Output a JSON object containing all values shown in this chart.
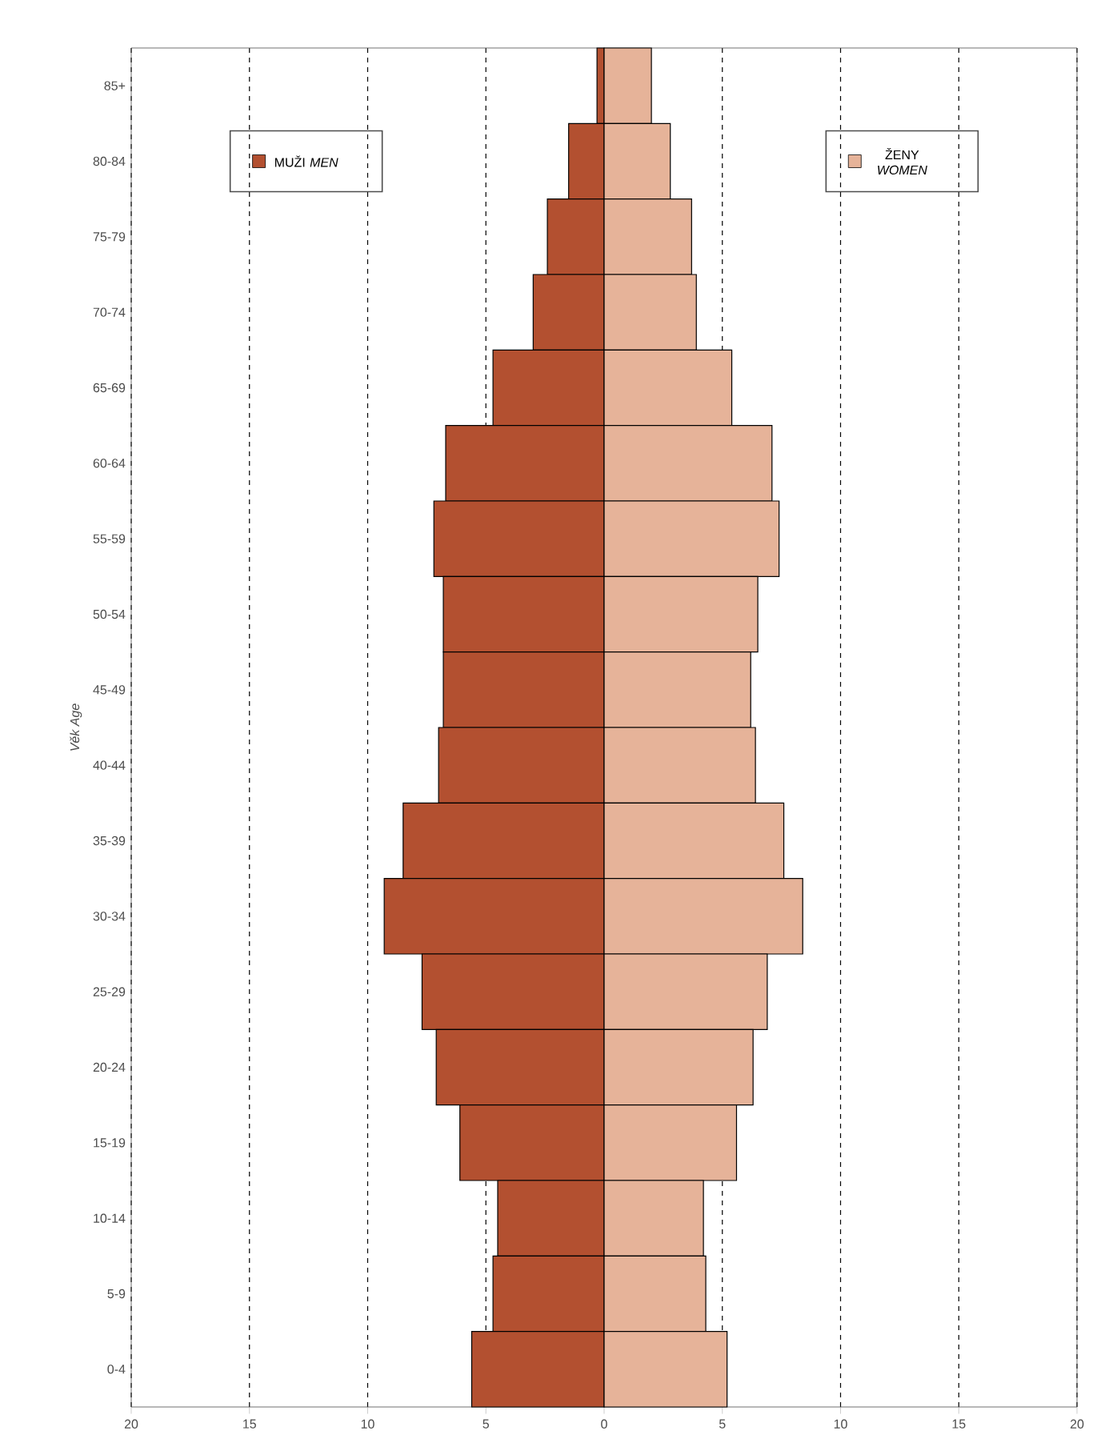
{
  "chart_data": {
    "type": "bar",
    "orientation": "horizontal",
    "ylabel": "Věk *Age*",
    "categories": [
      "85+",
      "80-84",
      "75-79",
      "70-74",
      "65-69",
      "60-64",
      "55-59",
      "50-54",
      "45-49",
      "40-44",
      "35-39",
      "30-34",
      "25-29",
      "20-24",
      "15-19",
      "10-14",
      "5-9",
      "0-4"
    ],
    "series": [
      {
        "name": "MUŽI *MEN*",
        "color": "#b35030",
        "values": [
          -0.3,
          -1.5,
          -2.4,
          -3.0,
          -4.7,
          -6.7,
          -7.2,
          -6.8,
          -6.8,
          -7.0,
          -8.5,
          -9.3,
          -7.7,
          -7.1,
          -6.1,
          -4.5,
          -4.7,
          -5.6
        ]
      },
      {
        "name": "ŽENY *WOMEN*",
        "color": "#e6b399",
        "values": [
          2.0,
          2.8,
          3.7,
          3.9,
          5.4,
          7.1,
          7.4,
          6.5,
          6.2,
          6.4,
          7.6,
          8.4,
          6.9,
          6.3,
          5.6,
          4.2,
          4.3,
          5.2
        ]
      }
    ],
    "xlim": [
      -20,
      20
    ],
    "xticks": [
      {
        "value": -20,
        "label": "20"
      },
      {
        "value": -15,
        "label": "15"
      },
      {
        "value": -10,
        "label": "10"
      },
      {
        "value": -5,
        "label": "5"
      },
      0,
      5,
      10,
      15,
      20
    ],
    "stacked": true,
    "grid": "x",
    "legend": "top"
  }
}
